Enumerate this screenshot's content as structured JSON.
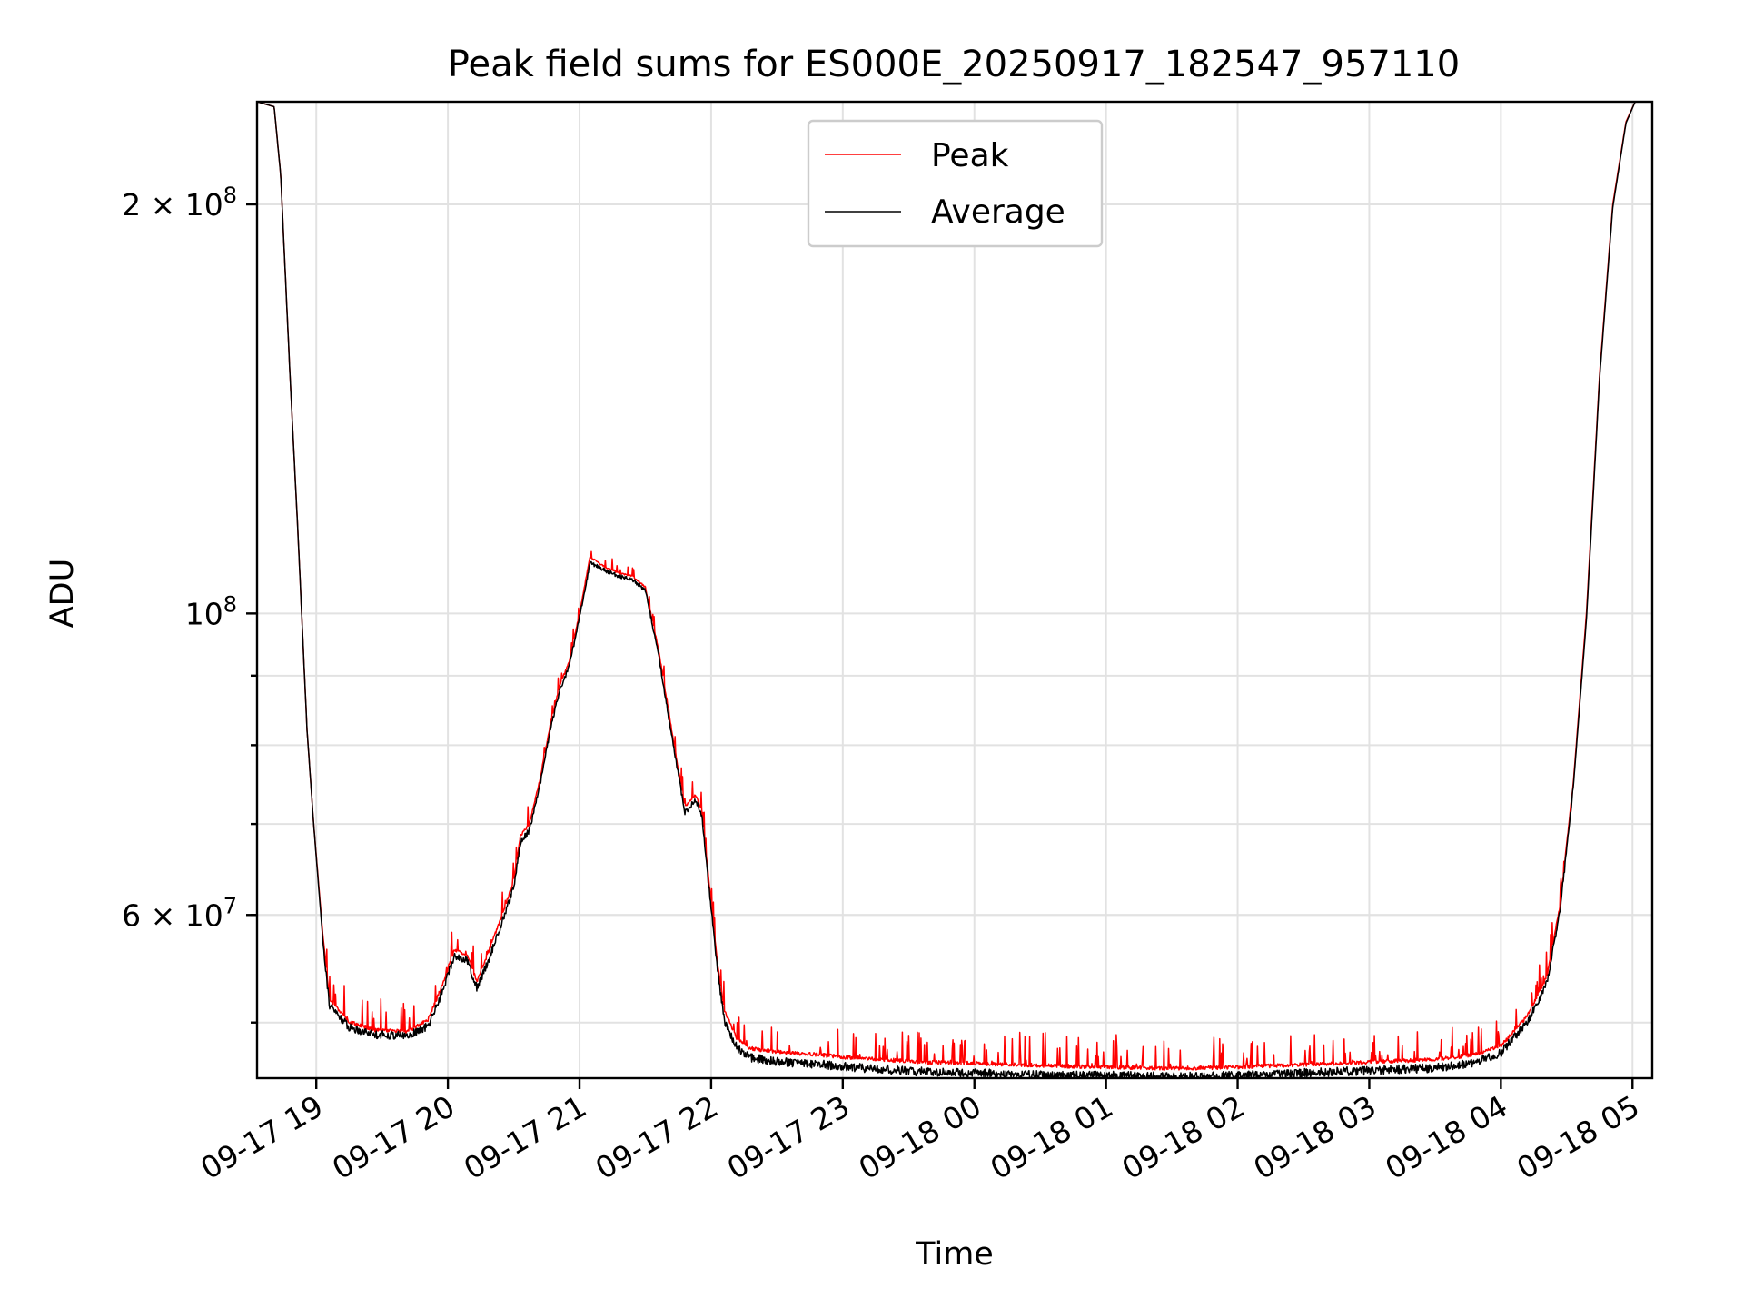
{
  "chart_data": {
    "type": "line",
    "title": "Peak field sums for ES000E_20250917_182547_957110",
    "xlabel": "Time",
    "ylabel": "ADU",
    "yscale": "log",
    "grid": true,
    "legend_position": "top-center",
    "xlim_hours": [
      18.55,
      29.15
    ],
    "ylim": [
      45500000,
      238000000
    ],
    "x_ticks": [
      {
        "hour": 19,
        "label": "09-17 19"
      },
      {
        "hour": 20,
        "label": "09-17 20"
      },
      {
        "hour": 21,
        "label": "09-17 21"
      },
      {
        "hour": 22,
        "label": "09-17 22"
      },
      {
        "hour": 23,
        "label": "09-17 23"
      },
      {
        "hour": 24,
        "label": "09-18 00"
      },
      {
        "hour": 25,
        "label": "09-18 01"
      },
      {
        "hour": 26,
        "label": "09-18 02"
      },
      {
        "hour": 27,
        "label": "09-18 03"
      },
      {
        "hour": 28,
        "label": "09-18 04"
      },
      {
        "hour": 29,
        "label": "09-18 05"
      }
    ],
    "y_major_ticks": [
      {
        "value": 60000000,
        "label_base": "6 × 10",
        "label_exp": "7"
      },
      {
        "value": 100000000,
        "label_base": "10",
        "label_exp": "8"
      },
      {
        "value": 200000000,
        "label_base": "2 × 10",
        "label_exp": "8"
      }
    ],
    "y_minor_ticks": [
      50000000,
      60000000,
      70000000,
      80000000,
      90000000
    ],
    "series": [
      {
        "name": "Peak",
        "color": "#ff0000",
        "noise": "positive spikes up to ~3e6 ADU between 19:00 and 04:00",
        "x_hours": [
          18.55,
          18.68,
          18.73,
          18.8,
          18.86,
          18.93,
          18.98,
          19.05,
          19.1,
          19.25,
          19.45,
          19.7,
          19.85,
          19.95,
          20.05,
          20.15,
          20.22,
          20.3,
          20.4,
          20.5,
          20.55,
          20.62,
          20.7,
          20.78,
          20.85,
          20.92,
          21.0,
          21.08,
          21.2,
          21.3,
          21.4,
          21.5,
          21.6,
          21.7,
          21.8,
          21.88,
          21.93,
          21.98,
          22.05,
          22.1,
          22.2,
          22.3,
          22.5,
          22.8,
          23.0,
          23.3,
          23.6,
          24.0,
          24.3,
          24.6,
          25.0,
          25.5,
          26.0,
          26.5,
          27.0,
          27.5,
          27.8,
          28.0,
          28.2,
          28.35,
          28.45,
          28.55,
          28.65,
          28.75,
          28.85,
          28.95,
          29.02,
          29.15
        ],
        "values": [
          238000000,
          236000000,
          210000000,
          150000000,
          115000000,
          82000000,
          70000000,
          58000000,
          52000000,
          50000000,
          49300000,
          49200000,
          50200000,
          53000000,
          56500000,
          56000000,
          53500000,
          56000000,
          59500000,
          63500000,
          68500000,
          70000000,
          75500000,
          83000000,
          88500000,
          92000000,
          100000000,
          110000000,
          108000000,
          107000000,
          106500000,
          104500000,
          94000000,
          82000000,
          72000000,
          73500000,
          71500000,
          64000000,
          55000000,
          51000000,
          48500000,
          47800000,
          47500000,
          47300000,
          47100000,
          46900000,
          46700000,
          46600000,
          46500000,
          46400000,
          46300000,
          46200000,
          46300000,
          46500000,
          46700000,
          46900000,
          47300000,
          48000000,
          50500000,
          54000000,
          61000000,
          75000000,
          100000000,
          150000000,
          200000000,
          230000000,
          238000000,
          238000000
        ]
      },
      {
        "name": "Average",
        "color": "#000000",
        "noise": "small jitter, mostly below Peak",
        "x_hours": [
          18.55,
          18.68,
          18.73,
          18.8,
          18.86,
          18.93,
          18.98,
          19.05,
          19.1,
          19.25,
          19.45,
          19.7,
          19.85,
          19.95,
          20.05,
          20.15,
          20.22,
          20.3,
          20.4,
          20.5,
          20.55,
          20.62,
          20.7,
          20.78,
          20.85,
          20.92,
          21.0,
          21.08,
          21.2,
          21.3,
          21.4,
          21.5,
          21.6,
          21.7,
          21.8,
          21.88,
          21.93,
          21.98,
          22.05,
          22.1,
          22.2,
          22.3,
          22.5,
          22.8,
          23.0,
          23.3,
          23.6,
          24.0,
          24.3,
          24.6,
          25.0,
          25.5,
          26.0,
          26.5,
          27.0,
          27.5,
          27.8,
          28.0,
          28.2,
          28.35,
          28.45,
          28.55,
          28.65,
          28.75,
          28.85,
          28.95,
          29.02,
          29.15
        ],
        "values": [
          238000000,
          236000000,
          210000000,
          150000000,
          115000000,
          82000000,
          70000000,
          57500000,
          51500000,
          49600000,
          49000000,
          48900000,
          49700000,
          52500000,
          56000000,
          55500000,
          53000000,
          55300000,
          58800000,
          62800000,
          67800000,
          69300000,
          74800000,
          82300000,
          87800000,
          91300000,
          99300000,
          109000000,
          107500000,
          106500000,
          106000000,
          104000000,
          93300000,
          81300000,
          71300000,
          73000000,
          71000000,
          63300000,
          54400000,
          50200000,
          47800000,
          47100000,
          46800000,
          46600000,
          46400000,
          46200000,
          46000000,
          45900000,
          45800000,
          45700000,
          45700000,
          45600000,
          45700000,
          45900000,
          46100000,
          46300000,
          46700000,
          47500000,
          50000000,
          53500000,
          60500000,
          74500000,
          99000000,
          149000000,
          199000000,
          229500000,
          238000000,
          238000000
        ]
      }
    ]
  }
}
